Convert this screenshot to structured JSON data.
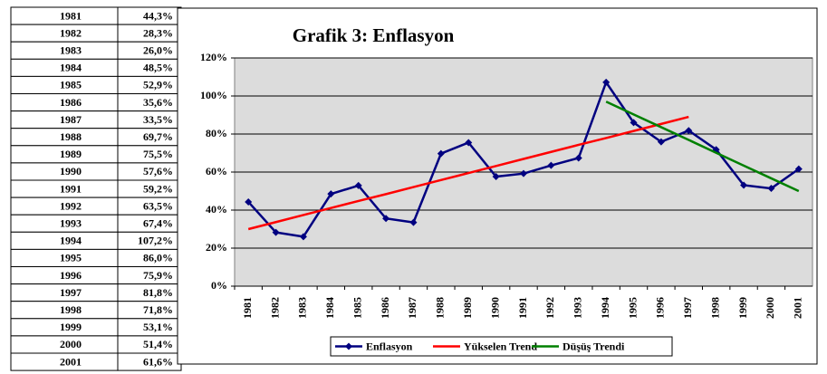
{
  "table": {
    "rows": [
      [
        "1981",
        "44,3%"
      ],
      [
        "1982",
        "28,3%"
      ],
      [
        "1983",
        "26,0%"
      ],
      [
        "1984",
        "48,5%"
      ],
      [
        "1985",
        "52,9%"
      ],
      [
        "1986",
        "35,6%"
      ],
      [
        "1987",
        "33,5%"
      ],
      [
        "1988",
        "69,7%"
      ],
      [
        "1989",
        "75,5%"
      ],
      [
        "1990",
        "57,6%"
      ],
      [
        "1991",
        "59,2%"
      ],
      [
        "1992",
        "63,5%"
      ],
      [
        "1993",
        "67,4%"
      ],
      [
        "1994",
        "107,2%"
      ],
      [
        "1995",
        "86,0%"
      ],
      [
        "1996",
        "75,9%"
      ],
      [
        "1997",
        "81,8%"
      ],
      [
        "1998",
        "71,8%"
      ],
      [
        "1999",
        "53,1%"
      ],
      [
        "2000",
        "51,4%"
      ],
      [
        "2001",
        "61,6%"
      ]
    ]
  },
  "chart_data": {
    "type": "line",
    "title": "Grafik 3: Enflasyon",
    "categories": [
      "1981",
      "1982",
      "1983",
      "1984",
      "1985",
      "1986",
      "1987",
      "1988",
      "1989",
      "1990",
      "1991",
      "1992",
      "1993",
      "1994",
      "1995",
      "1996",
      "1997",
      "1998",
      "1999",
      "2000",
      "2001"
    ],
    "series": [
      {
        "name": "Enflasyon",
        "color": "#000080",
        "marker": "diamond",
        "values": [
          44.3,
          28.3,
          26.0,
          48.5,
          52.9,
          35.6,
          33.5,
          69.7,
          75.5,
          57.6,
          59.2,
          63.5,
          67.4,
          107.2,
          86.0,
          75.9,
          81.8,
          71.8,
          53.1,
          51.4,
          61.6
        ]
      },
      {
        "name": "Yükselen Trend",
        "color": "#ff0000",
        "values": [
          30,
          33.7,
          37.4,
          41.1,
          44.8,
          48.4,
          52.1,
          55.8,
          59.5,
          63.2,
          66.9,
          70.6,
          74.3,
          77.9,
          81.6,
          85.3,
          89,
          null,
          null,
          null,
          null
        ]
      },
      {
        "name": "Düşüş Trendi",
        "color": "#008000",
        "values": [
          null,
          null,
          null,
          null,
          null,
          null,
          null,
          null,
          null,
          null,
          null,
          null,
          null,
          97,
          90.3,
          83.6,
          76.9,
          70.1,
          63.4,
          56.7,
          50
        ]
      }
    ],
    "ylim": [
      0,
      120
    ],
    "yticks": [
      {
        "value": 0,
        "label": "0%"
      },
      {
        "value": 20,
        "label": "20%"
      },
      {
        "value": 40,
        "label": "40%"
      },
      {
        "value": 60,
        "label": "60%"
      },
      {
        "value": 80,
        "label": "80%"
      },
      {
        "value": 100,
        "label": "100%"
      },
      {
        "value": 120,
        "label": "120%"
      }
    ],
    "grid": true,
    "legend": "bottom"
  }
}
